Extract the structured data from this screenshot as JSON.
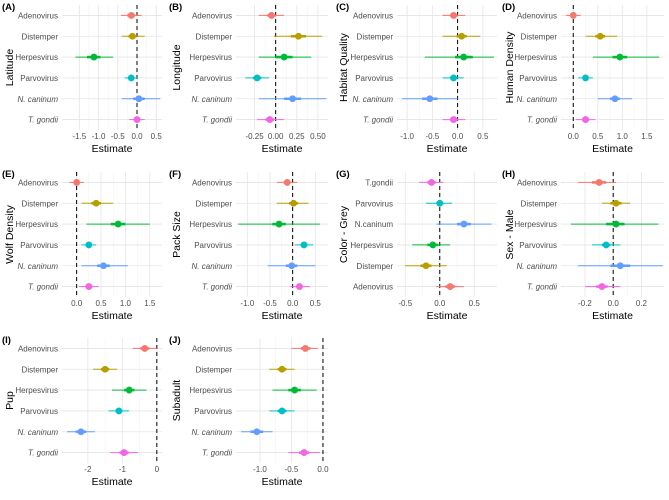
{
  "figure": {
    "xlabel": "Estimate",
    "colors": {
      "Adenovirus": "#f8766d",
      "Distemper": "#b79f00",
      "Herpesvirus": "#00ba38",
      "Parvovirus": "#00bfc4",
      "N. caninum": "#619cff",
      "T. gondii": "#f564e3",
      "T.gondii": "#f564e3",
      "N.caninum": "#619cff"
    }
  },
  "chart_data": [
    {
      "type": "scatter",
      "panel": "(A)",
      "ylabel": "Latitude",
      "xlabel": "Estimate",
      "xlim": [
        -1.95,
        0.65
      ],
      "ticks": [
        "-1.5",
        "-1.0",
        "-0.5",
        "0.0",
        "0.5"
      ],
      "tick_values": [
        -1.5,
        -1.0,
        -0.5,
        0.0,
        0.5
      ],
      "rows": [
        {
          "label": "Adenovirus",
          "italic": false,
          "est": -0.15,
          "lo50": -0.25,
          "hi50": -0.05,
          "lo95": -0.42,
          "hi95": 0.12
        },
        {
          "label": "Distemper",
          "italic": false,
          "est": -0.12,
          "lo50": -0.22,
          "hi50": -0.02,
          "lo95": -0.4,
          "hi95": 0.2
        },
        {
          "label": "Herpesvirus",
          "italic": false,
          "est": -1.12,
          "lo50": -1.3,
          "hi50": -0.95,
          "lo95": -1.6,
          "hi95": -0.62
        },
        {
          "label": "Parvovirus",
          "italic": false,
          "est": -0.15,
          "lo50": -0.22,
          "hi50": -0.08,
          "lo95": -0.32,
          "hi95": 0.02
        },
        {
          "label": "N. caninum",
          "italic": true,
          "est": 0.05,
          "lo50": -0.1,
          "hi50": 0.2,
          "lo95": -0.4,
          "hi95": 0.6
        },
        {
          "label": "T. gondii",
          "italic": true,
          "est": 0.0,
          "lo50": -0.08,
          "hi50": 0.08,
          "lo95": -0.2,
          "hi95": 0.2
        }
      ]
    },
    {
      "type": "scatter",
      "panel": "(B)",
      "ylabel": "Longitude",
      "xlabel": "Estimate",
      "xlim": [
        -0.47,
        0.62
      ],
      "ticks": [
        "-0.25",
        "0.00",
        "0.25",
        "0.50"
      ],
      "tick_values": [
        -0.25,
        0.0,
        0.25,
        0.5
      ],
      "rows": [
        {
          "label": "Adenovirus",
          "italic": false,
          "est": -0.05,
          "lo50": -0.1,
          "hi50": 0.0,
          "lo95": -0.2,
          "hi95": 0.1
        },
        {
          "label": "Distemper",
          "italic": false,
          "est": 0.27,
          "lo50": 0.18,
          "hi50": 0.36,
          "lo95": -0.02,
          "hi95": 0.55
        },
        {
          "label": "Herpesvirus",
          "italic": false,
          "est": 0.1,
          "lo50": 0.0,
          "hi50": 0.2,
          "lo95": -0.2,
          "hi95": 0.42
        },
        {
          "label": "Parvovirus",
          "italic": false,
          "est": -0.22,
          "lo50": -0.27,
          "hi50": -0.17,
          "lo95": -0.36,
          "hi95": -0.08
        },
        {
          "label": "N. caninum",
          "italic": true,
          "est": 0.2,
          "lo50": 0.1,
          "hi50": 0.3,
          "lo95": -0.2,
          "hi95": 0.6
        },
        {
          "label": "T. gondii",
          "italic": true,
          "est": -0.07,
          "lo50": -0.12,
          "hi50": -0.02,
          "lo95": -0.22,
          "hi95": 0.1
        }
      ]
    },
    {
      "type": "scatter",
      "panel": "(C)",
      "ylabel": "Habitat Quality",
      "xlabel": "Estimate",
      "xlim": [
        -1.2,
        0.78
      ],
      "ticks": [
        "-1.0",
        "-0.5",
        "0.0",
        "0.5"
      ],
      "tick_values": [
        -1.0,
        -0.5,
        0.0,
        0.5
      ],
      "rows": [
        {
          "label": "Adenovirus",
          "italic": false,
          "est": -0.08,
          "lo50": -0.15,
          "hi50": 0.0,
          "lo95": -0.3,
          "hi95": 0.15
        },
        {
          "label": "Distemper",
          "italic": false,
          "est": 0.08,
          "lo50": -0.02,
          "hi50": 0.18,
          "lo95": -0.3,
          "hi95": 0.45
        },
        {
          "label": "Herpesvirus",
          "italic": false,
          "est": 0.12,
          "lo50": -0.05,
          "hi50": 0.3,
          "lo95": -0.65,
          "hi95": 0.72
        },
        {
          "label": "Parvovirus",
          "italic": false,
          "est": -0.08,
          "lo50": -0.15,
          "hi50": 0.0,
          "lo95": -0.3,
          "hi95": 0.12
        },
        {
          "label": "N. caninum",
          "italic": true,
          "est": -0.55,
          "lo50": -0.7,
          "hi50": -0.4,
          "lo95": -1.1,
          "hi95": 0.0
        },
        {
          "label": "T. gondii",
          "italic": true,
          "est": -0.08,
          "lo50": -0.15,
          "hi50": 0.0,
          "lo95": -0.3,
          "hi95": 0.15
        }
      ]
    },
    {
      "type": "scatter",
      "panel": "(D)",
      "ylabel": "Human Density",
      "xlabel": "Estimate",
      "xlim": [
        -0.25,
        1.85
      ],
      "ticks": [
        "0.0",
        "0.5",
        "1.0",
        "1.5"
      ],
      "tick_values": [
        0.0,
        0.5,
        1.0,
        1.5
      ],
      "rows": [
        {
          "label": "Adenovirus",
          "italic": false,
          "est": 0.0,
          "lo50": -0.05,
          "hi50": 0.05,
          "lo95": -0.15,
          "hi95": 0.15
        },
        {
          "label": "Distemper",
          "italic": false,
          "est": 0.55,
          "lo50": 0.45,
          "hi50": 0.65,
          "lo95": 0.25,
          "hi95": 0.9
        },
        {
          "label": "Herpesvirus",
          "italic": false,
          "est": 0.95,
          "lo50": 0.8,
          "hi50": 1.1,
          "lo95": 0.4,
          "hi95": 1.75
        },
        {
          "label": "Parvovirus",
          "italic": false,
          "est": 0.25,
          "lo50": 0.2,
          "hi50": 0.3,
          "lo95": 0.1,
          "hi95": 0.4
        },
        {
          "label": "N. caninum",
          "italic": true,
          "est": 0.85,
          "lo50": 0.75,
          "hi50": 0.95,
          "lo95": 0.5,
          "hi95": 1.2
        },
        {
          "label": "T. gondii",
          "italic": true,
          "est": 0.25,
          "lo50": 0.18,
          "hi50": 0.32,
          "lo95": 0.05,
          "hi95": 0.45
        }
      ]
    },
    {
      "type": "scatter",
      "panel": "(E)",
      "ylabel": "Wolf Density",
      "xlabel": "Estimate",
      "xlim": [
        -0.3,
        1.75
      ],
      "ticks": [
        "0.0",
        "0.5",
        "1.0",
        "1.5"
      ],
      "tick_values": [
        0.0,
        0.5,
        1.0,
        1.5
      ],
      "rows": [
        {
          "label": "Adenovirus",
          "italic": false,
          "est": 0.0,
          "lo50": -0.05,
          "hi50": 0.05,
          "lo95": -0.15,
          "hi95": 0.15
        },
        {
          "label": "Distemper",
          "italic": false,
          "est": 0.4,
          "lo50": 0.3,
          "hi50": 0.5,
          "lo95": 0.1,
          "hi95": 0.75
        },
        {
          "label": "Herpesvirus",
          "italic": false,
          "est": 0.85,
          "lo50": 0.7,
          "hi50": 1.0,
          "lo95": 0.2,
          "hi95": 1.5
        },
        {
          "label": "Parvovirus",
          "italic": false,
          "est": 0.25,
          "lo50": 0.2,
          "hi50": 0.3,
          "lo95": 0.1,
          "hi95": 0.4
        },
        {
          "label": "N. caninum",
          "italic": true,
          "est": 0.55,
          "lo50": 0.42,
          "hi50": 0.68,
          "lo95": 0.1,
          "hi95": 1.05
        },
        {
          "label": "T. gondii",
          "italic": true,
          "est": 0.25,
          "lo50": 0.18,
          "hi50": 0.32,
          "lo95": 0.05,
          "hi95": 0.45
        }
      ]
    },
    {
      "type": "scatter",
      "panel": "(F)",
      "ylabel": "Pack Size",
      "xlabel": "Estimate",
      "xlim": [
        -1.25,
        0.78
      ],
      "ticks": [
        "-1.0",
        "-0.5",
        "0.0",
        "0.5"
      ],
      "tick_values": [
        -1.0,
        -0.5,
        0.0,
        0.5
      ],
      "rows": [
        {
          "label": "Adenovirus",
          "italic": false,
          "est": -0.12,
          "lo50": -0.2,
          "hi50": -0.05,
          "lo95": -0.35,
          "hi95": 0.1
        },
        {
          "label": "Distemper",
          "italic": false,
          "est": 0.02,
          "lo50": -0.08,
          "hi50": 0.12,
          "lo95": -0.35,
          "hi95": 0.35
        },
        {
          "label": "Herpesvirus",
          "italic": false,
          "est": -0.3,
          "lo50": -0.45,
          "hi50": -0.15,
          "lo95": -1.2,
          "hi95": 0.6
        },
        {
          "label": "Parvovirus",
          "italic": false,
          "est": 0.25,
          "lo50": 0.18,
          "hi50": 0.32,
          "lo95": 0.05,
          "hi95": 0.45
        },
        {
          "label": "N. caninum",
          "italic": true,
          "est": -0.02,
          "lo50": -0.15,
          "hi50": 0.1,
          "lo95": -0.55,
          "hi95": 0.5
        },
        {
          "label": "T. gondii",
          "italic": true,
          "est": 0.15,
          "lo50": 0.08,
          "hi50": 0.22,
          "lo95": -0.05,
          "hi95": 0.38
        }
      ]
    },
    {
      "type": "scatter",
      "panel": "(G)",
      "ylabel": "Color - Grey",
      "xlabel": "Estimate",
      "xlim": [
        -0.62,
        0.83
      ],
      "ticks": [
        "-0.5",
        "0.0",
        "0.5"
      ],
      "tick_values": [
        -0.5,
        0.0,
        0.5
      ],
      "rows": [
        {
          "label": "T.gondii",
          "italic": false,
          "est": -0.12,
          "lo50": -0.18,
          "hi50": -0.06,
          "lo95": -0.3,
          "hi95": 0.05
        },
        {
          "label": "Parvovirus",
          "italic": false,
          "est": 0.0,
          "lo50": -0.05,
          "hi50": 0.05,
          "lo95": -0.2,
          "hi95": 0.18
        },
        {
          "label": "N.caninum",
          "italic": false,
          "est": 0.35,
          "lo50": 0.25,
          "hi50": 0.45,
          "lo95": -0.05,
          "hi95": 0.75
        },
        {
          "label": "Herpesvirus",
          "italic": false,
          "est": -0.1,
          "lo50": -0.18,
          "hi50": -0.02,
          "lo95": -0.4,
          "hi95": 0.15
        },
        {
          "label": "Distemper",
          "italic": false,
          "est": -0.2,
          "lo50": -0.28,
          "hi50": -0.12,
          "lo95": -0.5,
          "hi95": 0.1
        },
        {
          "label": "Adenovirus",
          "italic": false,
          "est": 0.15,
          "lo50": 0.08,
          "hi50": 0.22,
          "lo95": -0.05,
          "hi95": 0.35
        }
      ]
    },
    {
      "type": "scatter",
      "panel": "(H)",
      "ylabel": "Sex - Male",
      "xlabel": "Estimate",
      "xlim": [
        -0.37,
        0.36
      ],
      "ticks": [
        "-0.2",
        "0.0",
        "0.2"
      ],
      "tick_values": [
        -0.2,
        0.0,
        0.2
      ],
      "rows": [
        {
          "label": "Adenovirus",
          "italic": false,
          "est": -0.1,
          "lo50": -0.15,
          "hi50": -0.05,
          "lo95": -0.25,
          "hi95": 0.02
        },
        {
          "label": "Distemper",
          "italic": false,
          "est": 0.02,
          "lo50": -0.02,
          "hi50": 0.06,
          "lo95": -0.08,
          "hi95": 0.12
        },
        {
          "label": "Herpesvirus",
          "italic": false,
          "est": 0.02,
          "lo50": -0.05,
          "hi50": 0.08,
          "lo95": -0.3,
          "hi95": 0.32
        },
        {
          "label": "Parvovirus",
          "italic": false,
          "est": -0.05,
          "lo50": -0.08,
          "hi50": -0.02,
          "lo95": -0.15,
          "hi95": 0.05
        },
        {
          "label": "N. caninum",
          "italic": true,
          "est": 0.05,
          "lo50": -0.02,
          "hi50": 0.12,
          "lo95": -0.25,
          "hi95": 0.35
        },
        {
          "label": "T. gondii",
          "italic": true,
          "est": -0.08,
          "lo50": -0.12,
          "hi50": -0.04,
          "lo95": -0.2,
          "hi95": 0.05
        }
      ]
    },
    {
      "type": "scatter",
      "panel": "(I)",
      "ylabel": "Pup",
      "xlabel": "Estimate",
      "xlim": [
        -2.75,
        0.15
      ],
      "ticks": [
        "-2",
        "-1",
        "0"
      ],
      "tick_values": [
        -2,
        -1,
        0
      ],
      "rows": [
        {
          "label": "Adenovirus",
          "italic": false,
          "est": -0.35,
          "lo50": -0.48,
          "hi50": -0.22,
          "lo95": -0.7,
          "hi95": 0.0
        },
        {
          "label": "Distemper",
          "italic": false,
          "est": -1.5,
          "lo50": -1.62,
          "hi50": -1.38,
          "lo95": -1.85,
          "hi95": -1.15
        },
        {
          "label": "Herpesvirus",
          "italic": false,
          "est": -0.8,
          "lo50": -0.95,
          "hi50": -0.65,
          "lo95": -1.3,
          "hi95": -0.3
        },
        {
          "label": "Parvovirus",
          "italic": false,
          "est": -1.1,
          "lo50": -1.2,
          "hi50": -1.0,
          "lo95": -1.4,
          "hi95": -0.8
        },
        {
          "label": "N. caninum",
          "italic": true,
          "est": -2.2,
          "lo50": -2.35,
          "hi50": -2.05,
          "lo95": -2.6,
          "hi95": -1.8
        },
        {
          "label": "T. gondii",
          "italic": true,
          "est": -0.95,
          "lo50": -1.08,
          "hi50": -0.82,
          "lo95": -1.35,
          "hi95": -0.55
        }
      ]
    },
    {
      "type": "scatter",
      "panel": "(J)",
      "ylabel": "Subadult",
      "xlabel": "Estimate",
      "xlim": [
        -1.38,
        0.08
      ],
      "ticks": [
        "-1.0",
        "-0.5",
        "0.0"
      ],
      "tick_values": [
        -1.0,
        -0.5,
        0.0
      ],
      "rows": [
        {
          "label": "Adenovirus",
          "italic": false,
          "est": -0.28,
          "lo50": -0.35,
          "hi50": -0.2,
          "lo95": -0.5,
          "hi95": -0.08
        },
        {
          "label": "Distemper",
          "italic": false,
          "est": -0.65,
          "lo50": -0.72,
          "hi50": -0.58,
          "lo95": -0.85,
          "hi95": -0.45
        },
        {
          "label": "Herpesvirus",
          "italic": false,
          "est": -0.45,
          "lo50": -0.55,
          "hi50": -0.35,
          "lo95": -0.8,
          "hi95": -0.1
        },
        {
          "label": "Parvovirus",
          "italic": false,
          "est": -0.65,
          "lo50": -0.72,
          "hi50": -0.58,
          "lo95": -0.85,
          "hi95": -0.45
        },
        {
          "label": "N. caninum",
          "italic": true,
          "est": -1.05,
          "lo50": -1.15,
          "hi50": -0.95,
          "lo95": -1.3,
          "hi95": -0.8
        },
        {
          "label": "T. gondii",
          "italic": true,
          "est": -0.3,
          "lo50": -0.38,
          "hi50": -0.22,
          "lo95": -0.55,
          "hi95": -0.05
        }
      ]
    }
  ]
}
